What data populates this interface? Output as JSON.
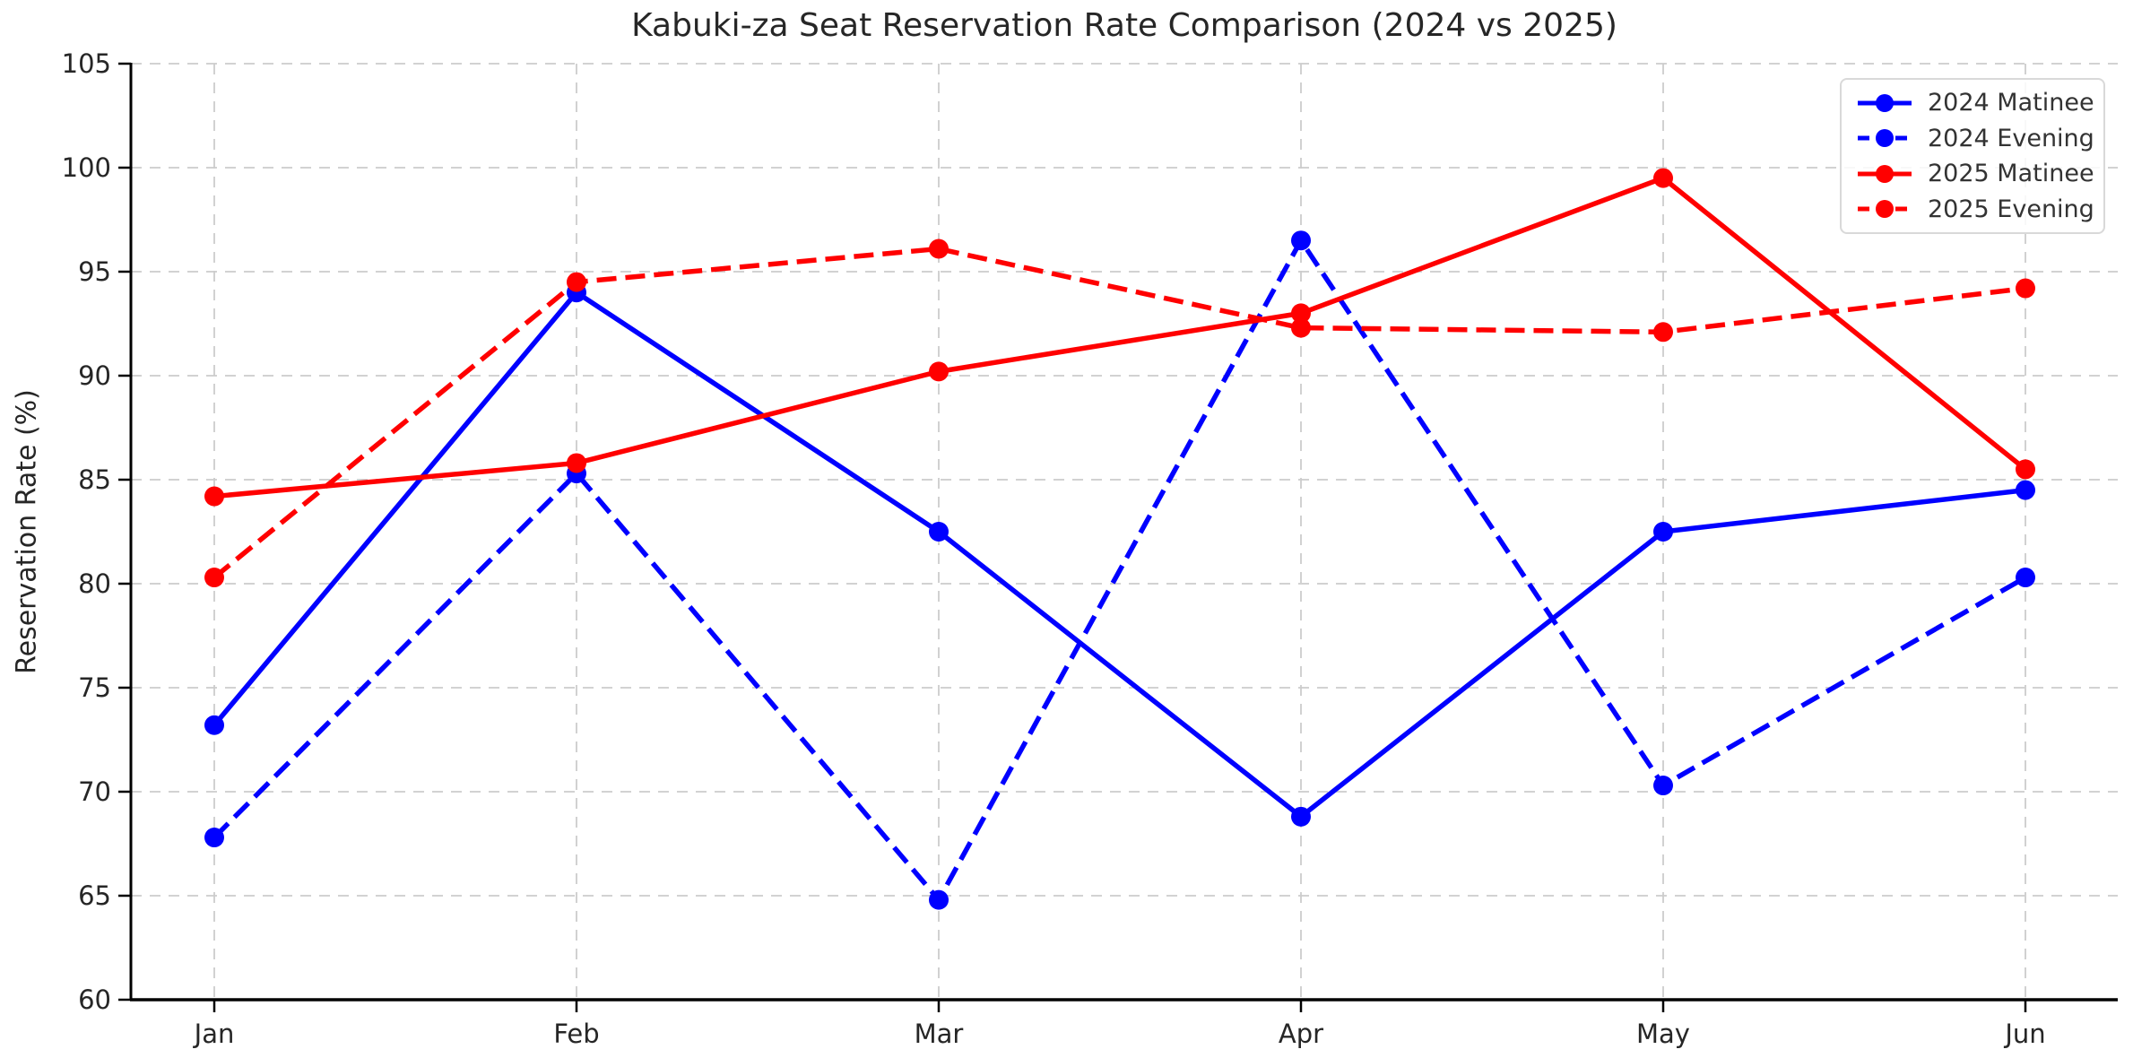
{
  "title": "Kabuki-za Seat Reservation Rate Comparison (2024 vs 2025)",
  "chart_data": {
    "type": "line",
    "title": "Kabuki-za Seat Reservation Rate Comparison (2024 vs 2025)",
    "xlabel": "",
    "ylabel": "Reservation Rate (%)",
    "categories": [
      "Jan",
      "Feb",
      "Mar",
      "Apr",
      "May",
      "Jun"
    ],
    "series": [
      {
        "name": "2024 Matinee",
        "color": "#0000ff",
        "line_style": "solid",
        "values": [
          73.2,
          94.0,
          82.5,
          68.8,
          82.5,
          84.5
        ]
      },
      {
        "name": "2024 Evening",
        "color": "#0000ff",
        "line_style": "dashed",
        "values": [
          67.8,
          85.3,
          64.8,
          96.5,
          70.3,
          80.3
        ]
      },
      {
        "name": "2025 Matinee",
        "color": "#ff0000",
        "line_style": "solid",
        "values": [
          84.2,
          85.8,
          90.2,
          93.0,
          99.5,
          85.5
        ]
      },
      {
        "name": "2025 Evening",
        "color": "#ff0000",
        "line_style": "dashed",
        "values": [
          80.3,
          94.5,
          96.1,
          92.3,
          92.1,
          94.2
        ]
      }
    ],
    "ylim": [
      60,
      105
    ],
    "yticks": [
      60,
      65,
      70,
      75,
      80,
      85,
      90,
      95,
      100,
      105
    ],
    "grid": true,
    "grid_color": "#cccccc",
    "axis_color": "#000000",
    "tick_label_color": "#262626",
    "legend_position": "upper right"
  }
}
